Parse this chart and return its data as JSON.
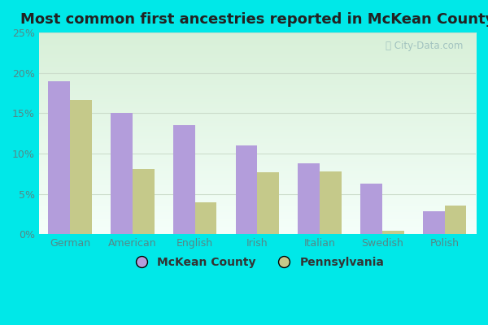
{
  "title": "Most common first ancestries reported in McKean County",
  "categories": [
    "German",
    "American",
    "English",
    "Irish",
    "Italian",
    "Swedish",
    "Polish"
  ],
  "mckean_values": [
    19.0,
    15.0,
    13.5,
    11.0,
    8.8,
    6.3,
    2.8
  ],
  "pennsylvania_values": [
    16.6,
    8.1,
    3.9,
    7.7,
    7.8,
    0.4,
    3.5
  ],
  "mckean_color": "#b39ddb",
  "pennsylvania_color": "#c5c98a",
  "ylim": [
    0,
    25
  ],
  "yticks": [
    0,
    5,
    10,
    15,
    20,
    25
  ],
  "ytick_labels": [
    "0%",
    "5%",
    "10%",
    "15%",
    "20%",
    "25%"
  ],
  "figure_bg_color": "#00e8e8",
  "title_fontsize": 13,
  "bar_width": 0.35,
  "watermark": "City-Data.com",
  "legend_label_mckean": "McKean County",
  "legend_label_pa": "Pennsylvania",
  "grid_color": "#ccddcc",
  "tick_color": "#558888",
  "plot_bg_top": "#f5fffa",
  "plot_bg_bottom": "#d8f0d8"
}
